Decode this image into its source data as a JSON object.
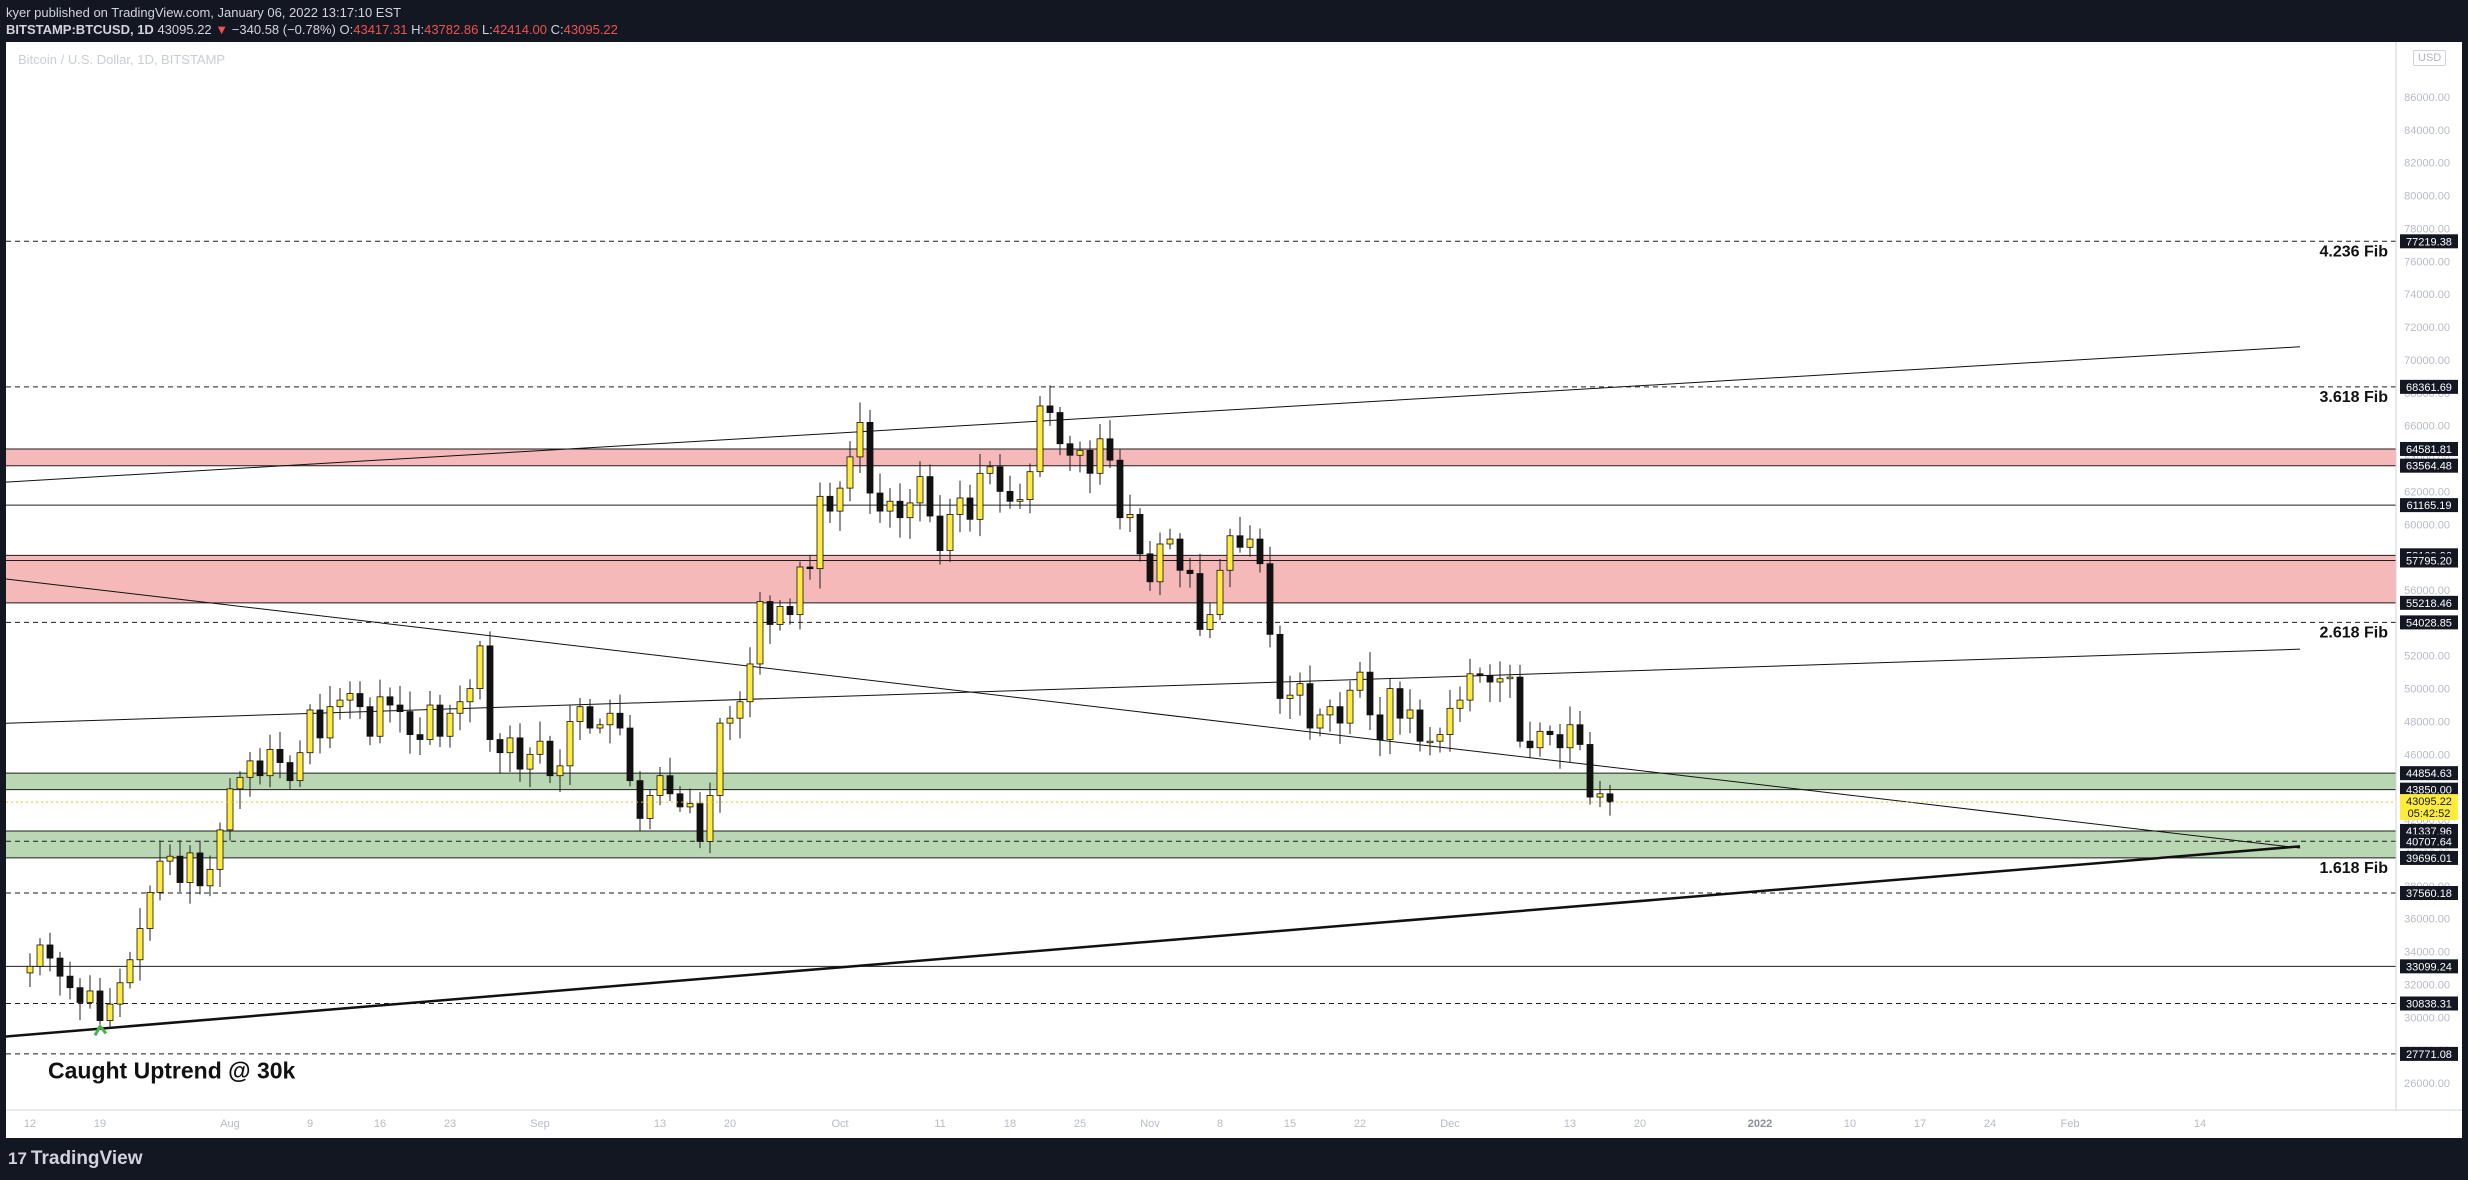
{
  "header": {
    "line1": "kyer published on TradingView.com, January 06, 2022 13:17:10 EST",
    "symbol": "BITSTAMP:BTCUSD, 1D",
    "price": "43095.22",
    "change_arrow": "▼",
    "change": "−340.58 (−0.78%)",
    "o_label": "O:",
    "o": "43417.31",
    "h_label": "H:",
    "h": "43782.86",
    "l_label": "L:",
    "l": "42414.00",
    "c_label": "C:",
    "c": "43095.22"
  },
  "footer": {
    "brand": "TradingView",
    "logo_icon": "tradingview-logo-icon"
  },
  "chart_data": {
    "type": "candlestick",
    "title": "Bitcoin / U.S. Dollar, 1D, BITSTAMP",
    "currency": "USD",
    "ylim": [
      25500,
      86800
    ],
    "y_ticks": [
      26000,
      28000,
      30000,
      32000,
      34000,
      36000,
      38000,
      40000,
      42000,
      44000,
      46000,
      48000,
      50000,
      52000,
      54000,
      56000,
      58000,
      60000,
      62000,
      64000,
      66000,
      68000,
      70000,
      72000,
      74000,
      76000,
      78000,
      80000,
      82000,
      84000,
      86000
    ],
    "y_tick_labels": [
      "26000.00",
      "28000.00",
      "30000.00",
      "32000.00",
      "34000.00",
      "36000.00",
      "38000.00",
      "40000.00",
      "42000.00",
      "44000.00",
      "46000.00",
      "48000.00",
      "50000.00",
      "52000.00",
      "54000.00",
      "56000.00",
      "58000.00",
      "60000.00",
      "62000.00",
      "64000.00",
      "66000.00",
      "68000.00",
      "70000.00",
      "72000.00",
      "74000.00",
      "76000.00",
      "78000.00",
      "80000.00",
      "82000.00",
      "84000.00",
      "86000.00"
    ],
    "x_ticks": [
      {
        "label": "12",
        "day": 0
      },
      {
        "label": "19",
        "day": 7
      },
      {
        "label": "Aug",
        "day": 20
      },
      {
        "label": "9",
        "day": 28
      },
      {
        "label": "16",
        "day": 35
      },
      {
        "label": "23",
        "day": 42
      },
      {
        "label": "Sep",
        "day": 51
      },
      {
        "label": "13",
        "day": 63
      },
      {
        "label": "20",
        "day": 70
      },
      {
        "label": "Oct",
        "day": 81
      },
      {
        "label": "11",
        "day": 91
      },
      {
        "label": "18",
        "day": 98
      },
      {
        "label": "25",
        "day": 105
      },
      {
        "label": "Nov",
        "day": 112
      },
      {
        "label": "8",
        "day": 119
      },
      {
        "label": "15",
        "day": 126
      },
      {
        "label": "22",
        "day": 133
      },
      {
        "label": "Dec",
        "day": 142
      },
      {
        "label": "13",
        "day": 154
      },
      {
        "label": "20",
        "day": 161
      },
      {
        "label": "2022",
        "day": 173
      },
      {
        "label": "10",
        "day": 182
      },
      {
        "label": "17",
        "day": 189
      },
      {
        "label": "24",
        "day": 196
      },
      {
        "label": "Feb",
        "day": 204
      },
      {
        "label": "14",
        "day": 217
      }
    ],
    "closes": [
      33100,
      34400,
      33600,
      32500,
      31800,
      30900,
      31600,
      29800,
      30800,
      32100,
      33500,
      35400,
      37600,
      39500,
      39800,
      38200,
      40000,
      38000,
      39000,
      41400,
      43900,
      44600,
      45600,
      44700,
      46300,
      45500,
      44400,
      46100,
      48700,
      47000,
      48900,
      49300,
      49700,
      48900,
      47100,
      49500,
      49000,
      48600,
      47200,
      46900,
      49000,
      47100,
      48500,
      49200,
      50000,
      52600,
      46900,
      46100,
      47000,
      45100,
      46000,
      46800,
      44700,
      45300,
      48000,
      48900,
      47600,
      47800,
      48500,
      47600,
      44400,
      42100,
      43500,
      44700,
      43600,
      42800,
      43000,
      40700,
      43500,
      47900,
      48200,
      49200,
      51500,
      55300,
      53900,
      55000,
      54500,
      57400,
      57300,
      61700,
      60800,
      62200,
      64100,
      66200,
      61900,
      60800,
      61400,
      60400,
      61300,
      62900,
      60500,
      58400,
      60600,
      61600,
      60300,
      63100,
      63500,
      62000,
      61400,
      61500,
      63200,
      67200,
      66800,
      64900,
      64200,
      64500,
      63100,
      65200,
      63900,
      60400,
      60600,
      58200,
      56500,
      58800,
      59100,
      57200,
      57000,
      53600,
      54500,
      57200,
      59300,
      58600,
      59100,
      57600,
      53300,
      49400,
      49600,
      50300,
      47600,
      48400,
      48900,
      47900,
      49900,
      51000,
      48400,
      46900,
      50000,
      48200,
      48700,
      46800,
      46800,
      47200,
      48800,
      49300,
      50900,
      50800,
      50400,
      50600,
      50700,
      46800,
      46400,
      47400,
      47200,
      46400,
      47800,
      46600,
      43400,
      43600,
      43095
    ],
    "start_day": 0,
    "levels": [
      {
        "value": 77219.38,
        "label": "77219.38",
        "style": "dashed",
        "fib": "4.236 Fib"
      },
      {
        "value": 68361.69,
        "label": "68361.69",
        "style": "dashed",
        "fib": "3.618 Fib"
      },
      {
        "value": 64581.81,
        "label": "64581.81",
        "style": "zone-edge"
      },
      {
        "value": 63564.48,
        "label": "63564.48",
        "style": "zone-edge"
      },
      {
        "value": 61165.19,
        "label": "61165.19",
        "style": "solid"
      },
      {
        "value": 58109.96,
        "label": "58109.96",
        "style": "zone-edge"
      },
      {
        "value": 57795.2,
        "label": "57795.20",
        "style": "zone-edge"
      },
      {
        "value": 55218.46,
        "label": "55218.46",
        "style": "zone-edge"
      },
      {
        "value": 54028.85,
        "label": "54028.85",
        "style": "dashed",
        "fib": "2.618 Fib"
      },
      {
        "value": 44854.63,
        "label": "44854.63",
        "style": "zone-edge"
      },
      {
        "value": 43850.0,
        "label": "43850.00",
        "style": "zone-edge"
      },
      {
        "value": 41337.96,
        "label": "41337.96",
        "style": "zone-edge"
      },
      {
        "value": 40707.64,
        "label": "40707.64",
        "style": "dashed"
      },
      {
        "value": 39696.01,
        "label": "39696.01",
        "style": "zone-edge",
        "fib": "1.618 Fib"
      },
      {
        "value": 37560.18,
        "label": "37560.18",
        "style": "dashed"
      },
      {
        "value": 33099.24,
        "label": "33099.24",
        "style": "solid"
      },
      {
        "value": 30838.31,
        "label": "30838.31",
        "style": "dashed"
      },
      {
        "value": 27771.08,
        "label": "27771.08",
        "style": "dashed"
      }
    ],
    "zones": [
      {
        "from": 63564.48,
        "to": 64581.81,
        "color": "#f2a7a7"
      },
      {
        "from": 55218.46,
        "to": 58109.96,
        "color": "#f2a7a7"
      },
      {
        "from": 43850.0,
        "to": 44854.63,
        "color": "#a9cda0"
      },
      {
        "from": 39696.01,
        "to": 41337.96,
        "color": "#a9cda0"
      }
    ],
    "trendlines": [
      {
        "d1": -7,
        "v1": 62400,
        "d2": 227,
        "v2": 70800,
        "width": 1
      },
      {
        "d1": -7,
        "v1": 57000,
        "d2": 227,
        "v2": 40300,
        "width": 1
      },
      {
        "d1": -7,
        "v1": 47800,
        "d2": 227,
        "v2": 52400,
        "width": 1
      },
      {
        "d1": -7,
        "v1": 28600,
        "d2": 227,
        "v2": 40400,
        "width": 2.5
      }
    ],
    "current_price": {
      "value": 43095.22,
      "label": "43095.22",
      "countdown": "05:42:52",
      "color": "#ffeb3b"
    },
    "annotation": {
      "text": "Caught Uptrend @ 30k",
      "arrow_color": "#4caf50",
      "day": 7
    }
  }
}
